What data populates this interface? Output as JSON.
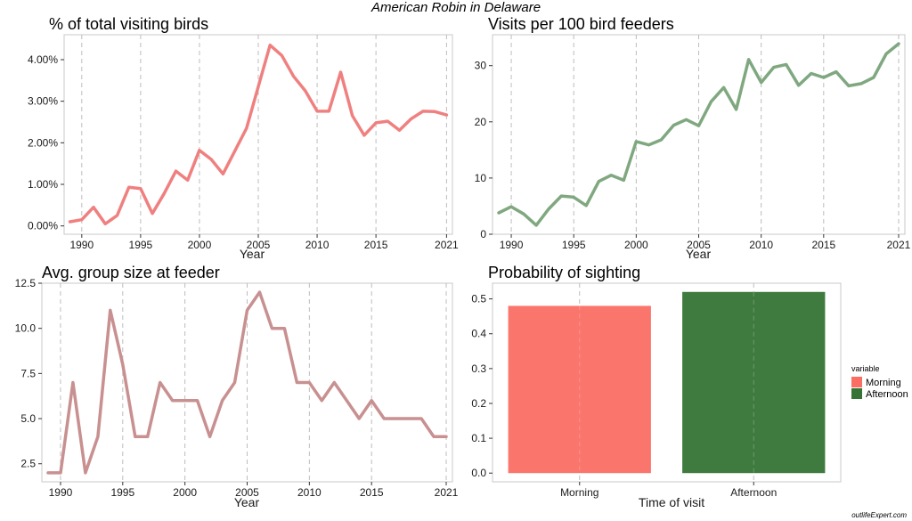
{
  "title": "American Robin in Delaware",
  "credit": "outlifeExpert.com",
  "colors": {
    "pct": "#F08080",
    "visits": "#80A880",
    "group": "#C89090",
    "morning": "#FA6E64",
    "afternoon": "#357435",
    "gridline": "#BDBDBD",
    "panel_border": "#C8C8C8"
  },
  "chart_data": [
    {
      "type": "line",
      "title": "% of total visiting birds",
      "xlabel": "Year",
      "ylabel": "",
      "xlim": [
        1988.5,
        2021.5
      ],
      "ylim": [
        -0.2,
        4.6
      ],
      "x_ticks": [
        1990,
        1995,
        2000,
        2005,
        2010,
        2015,
        2021
      ],
      "y_ticks": [
        0,
        1,
        2,
        3,
        4
      ],
      "y_tick_labels": [
        "0.00%",
        "1.00%",
        "2.00%",
        "3.00%",
        "4.00%"
      ],
      "grid": "vertical-dashed",
      "series": [
        {
          "x": [
            1989,
            1990,
            1991,
            1992,
            1993,
            1994,
            1995,
            1996,
            1997,
            1998,
            1999,
            2000,
            2001,
            2002,
            2003,
            2004,
            2005,
            2006,
            2007,
            2008,
            2009,
            2010,
            2011,
            2012,
            2013,
            2014,
            2015,
            2016,
            2017,
            2018,
            2019,
            2020,
            2021
          ],
          "values": [
            0.1,
            0.15,
            0.45,
            0.05,
            0.25,
            0.93,
            0.9,
            0.3,
            0.78,
            1.32,
            1.1,
            1.82,
            1.6,
            1.25,
            1.8,
            2.35,
            3.35,
            4.35,
            4.1,
            3.6,
            3.25,
            2.76,
            2.76,
            3.7,
            2.65,
            2.18,
            2.48,
            2.52,
            2.3,
            2.58,
            2.76,
            2.75,
            2.67
          ]
        }
      ]
    },
    {
      "type": "line",
      "title": "Visits per 100 bird feeders",
      "xlabel": "Year",
      "ylabel": "",
      "xlim": [
        1988.5,
        2021.5
      ],
      "ylim": [
        0,
        35.5
      ],
      "x_ticks": [
        1990,
        1995,
        2000,
        2005,
        2010,
        2015,
        2021
      ],
      "y_ticks": [
        0,
        10,
        20,
        30
      ],
      "y_tick_labels": [
        "0",
        "10",
        "20",
        "30"
      ],
      "grid": "vertical-dashed",
      "series": [
        {
          "x": [
            1989,
            1990,
            1991,
            1992,
            1993,
            1994,
            1995,
            1996,
            1997,
            1998,
            1999,
            2000,
            2001,
            2002,
            2003,
            2004,
            2005,
            2006,
            2007,
            2008,
            2009,
            2010,
            2011,
            2012,
            2013,
            2014,
            2015,
            2016,
            2017,
            2018,
            2019,
            2020,
            2021
          ],
          "values": [
            3.8,
            4.9,
            3.6,
            1.6,
            4.5,
            6.8,
            6.6,
            5.1,
            9.4,
            10.5,
            9.6,
            16.5,
            15.9,
            16.8,
            19.4,
            20.4,
            19.3,
            23.6,
            26.1,
            22.2,
            31.1,
            27,
            29.7,
            30.2,
            26.5,
            28.6,
            27.9,
            28.9,
            26.4,
            26.8,
            27.9,
            32.1,
            33.9
          ]
        }
      ]
    },
    {
      "type": "line",
      "title": "Avg. group size at feeder",
      "xlabel": "Year",
      "ylabel": "",
      "xlim": [
        1988.5,
        2021.5
      ],
      "ylim": [
        1.5,
        12.5
      ],
      "x_ticks": [
        1990,
        1995,
        2000,
        2005,
        2010,
        2015,
        2021
      ],
      "y_ticks": [
        2.5,
        5,
        7.5,
        10,
        12.5
      ],
      "y_tick_labels": [
        "2.5",
        "5.0",
        "7.5",
        "10.0",
        "12.5"
      ],
      "grid": "vertical-dashed",
      "series": [
        {
          "x": [
            1989,
            1990,
            1991,
            1992,
            1993,
            1994,
            1995,
            1996,
            1997,
            1998,
            1999,
            2000,
            2001,
            2002,
            2003,
            2004,
            2005,
            2006,
            2007,
            2008,
            2009,
            2010,
            2011,
            2012,
            2013,
            2014,
            2015,
            2016,
            2017,
            2018,
            2019,
            2020,
            2021
          ],
          "values": [
            2,
            2,
            7,
            2,
            4,
            11,
            8,
            4,
            4,
            7,
            6,
            6,
            6,
            4,
            6,
            7,
            11,
            12,
            10,
            10,
            7,
            7,
            6,
            7,
            6,
            5,
            6,
            5,
            5,
            5,
            5,
            4,
            4
          ]
        }
      ]
    },
    {
      "type": "bar",
      "title": "Probability of sighting",
      "xlabel": "Time of visit",
      "ylabel": "",
      "categories": [
        "Morning",
        "Afternoon"
      ],
      "values": [
        0.48,
        0.52
      ],
      "ylim": [
        -0.025,
        0.545
      ],
      "y_ticks": [
        0,
        0.1,
        0.2,
        0.3,
        0.4,
        0.5
      ],
      "y_tick_labels": [
        "0.0",
        "0.1",
        "0.2",
        "0.3",
        "0.4",
        "0.5"
      ],
      "grid": "vertical-dashed",
      "legend": {
        "title": "variable",
        "position": "right",
        "entries": [
          "Morning",
          "Afternoon"
        ]
      }
    }
  ]
}
